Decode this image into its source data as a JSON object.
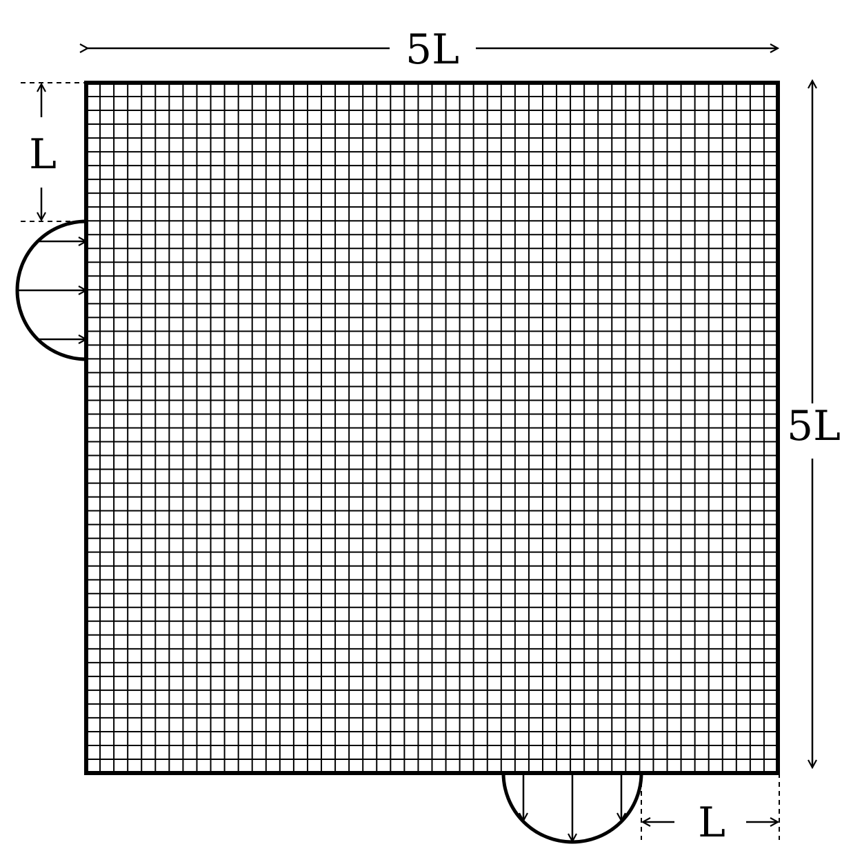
{
  "labels": {
    "width": "5L",
    "height": "5L",
    "inlet_offset": "L",
    "outlet_offset": "L"
  },
  "mesh": {
    "cells_per_side": 50
  },
  "colors": {
    "stroke": "#000000",
    "background": "#ffffff"
  }
}
